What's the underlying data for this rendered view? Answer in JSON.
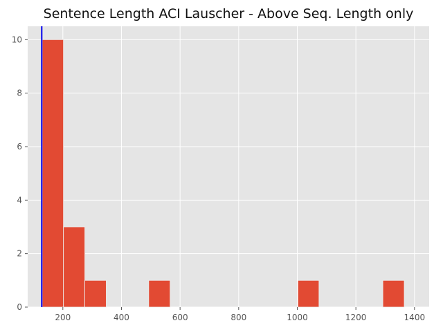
{
  "chart_data": {
    "type": "bar",
    "title": "Sentence Length ACI Lauscher - Above Seq. Length only",
    "xlabel": "",
    "ylabel": "",
    "xlim": [
      80,
      1450
    ],
    "ylim": [
      0,
      10.5
    ],
    "grid": true,
    "x_ticks": [
      200,
      400,
      600,
      800,
      1000,
      1200,
      1400
    ],
    "y_ticks": [
      0,
      2,
      4,
      6,
      8,
      10
    ],
    "bars": [
      {
        "x0": 130,
        "x1": 202,
        "value": 10
      },
      {
        "x0": 202,
        "x1": 275,
        "value": 3
      },
      {
        "x0": 275,
        "x1": 348,
        "value": 1
      },
      {
        "x0": 348,
        "x1": 420,
        "value": 0
      },
      {
        "x0": 420,
        "x1": 493,
        "value": 0
      },
      {
        "x0": 493,
        "x1": 566,
        "value": 1
      },
      {
        "x0": 566,
        "x1": 638,
        "value": 0
      },
      {
        "x0": 638,
        "x1": 711,
        "value": 0
      },
      {
        "x0": 711,
        "x1": 784,
        "value": 0
      },
      {
        "x0": 784,
        "x1": 856,
        "value": 0
      },
      {
        "x0": 856,
        "x1": 929,
        "value": 0
      },
      {
        "x0": 929,
        "x1": 1002,
        "value": 0
      },
      {
        "x0": 1002,
        "x1": 1074,
        "value": 1
      },
      {
        "x0": 1074,
        "x1": 1147,
        "value": 0
      },
      {
        "x0": 1147,
        "x1": 1220,
        "value": 0
      },
      {
        "x0": 1220,
        "x1": 1292,
        "value": 0
      },
      {
        "x0": 1292,
        "x1": 1365,
        "value": 1
      }
    ],
    "reference_line": {
      "x": 128
    },
    "colors": {
      "bar": "#E24A33",
      "reference_line": "#0000EE",
      "background": "#E5E5E5",
      "grid": "#FFFFFF"
    }
  }
}
